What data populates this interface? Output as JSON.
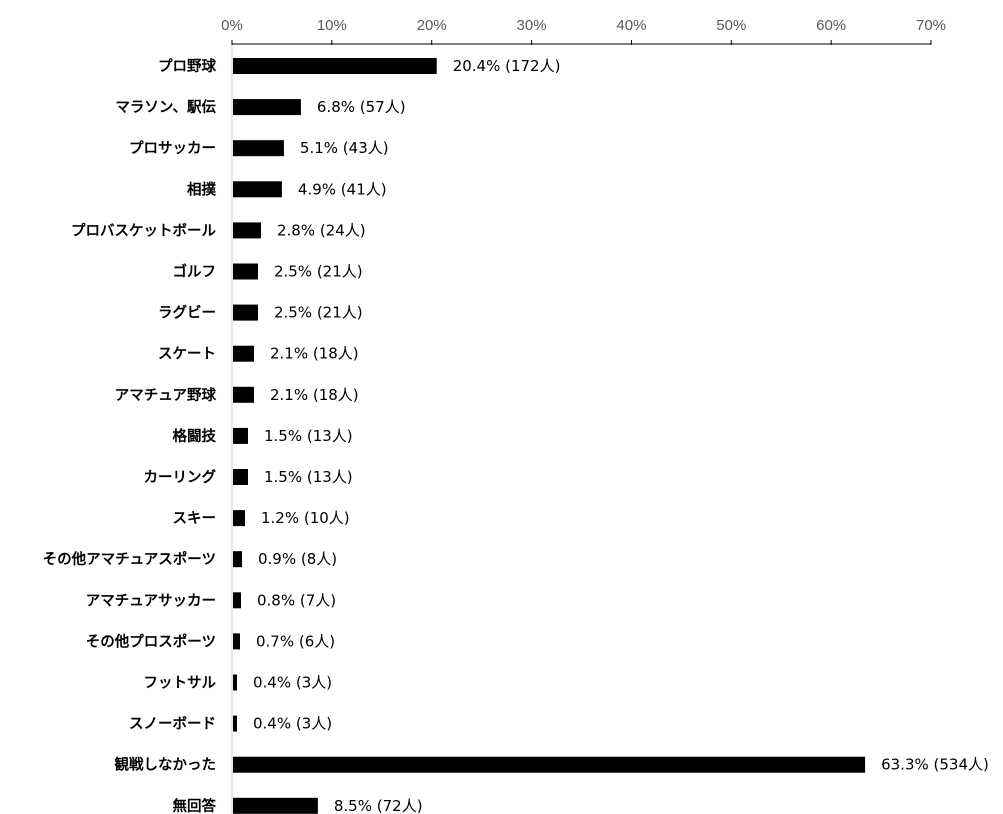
{
  "chart_data": {
    "type": "bar",
    "orientation": "horizontal",
    "title": "",
    "xlabel": "",
    "ylabel": "",
    "xlim": [
      0,
      70
    ],
    "x_ticks": [
      "0%",
      "10%",
      "20%",
      "30%",
      "40%",
      "50%",
      "60%",
      "70%"
    ],
    "x_tick_values": [
      0,
      10,
      20,
      30,
      40,
      50,
      60,
      70
    ],
    "axis_position": "top",
    "grid": false,
    "legend": "none",
    "bar_color": "#000000",
    "categories": [
      "プロ野球",
      "マラソン、駅伝",
      "プロサッカー",
      "相撲",
      "プロバスケットボール",
      "ゴルフ",
      "ラグビー",
      "スケート",
      "アマチュア野球",
      "格闘技",
      "カーリング",
      "スキー",
      "その他アマチュアスポーツ",
      "アマチュアサッカー",
      "その他プロスポーツ",
      "フットサル",
      "スノーボード",
      "観戦しなかった",
      "無回答"
    ],
    "values": [
      20.4,
      6.8,
      5.1,
      4.9,
      2.8,
      2.5,
      2.5,
      2.1,
      2.1,
      1.5,
      1.5,
      1.2,
      0.9,
      0.8,
      0.7,
      0.4,
      0.4,
      63.3,
      8.5
    ],
    "data_labels": [
      "20.4% (172人)",
      "6.8% (57人)",
      "5.1% (43人)",
      "4.9% (41人)",
      "2.8% (24人)",
      "2.5% (21人)",
      "2.5% (21人)",
      "2.1% (18人)",
      "2.1% (18人)",
      "1.5% (13人)",
      "1.5% (13人)",
      "1.2% (10人)",
      "0.9% (8人)",
      "0.8% (7人)",
      "0.7% (6人)",
      "0.4% (3人)",
      "0.4% (3人)",
      "63.3% (534人)",
      "8.5% (72人)"
    ]
  }
}
